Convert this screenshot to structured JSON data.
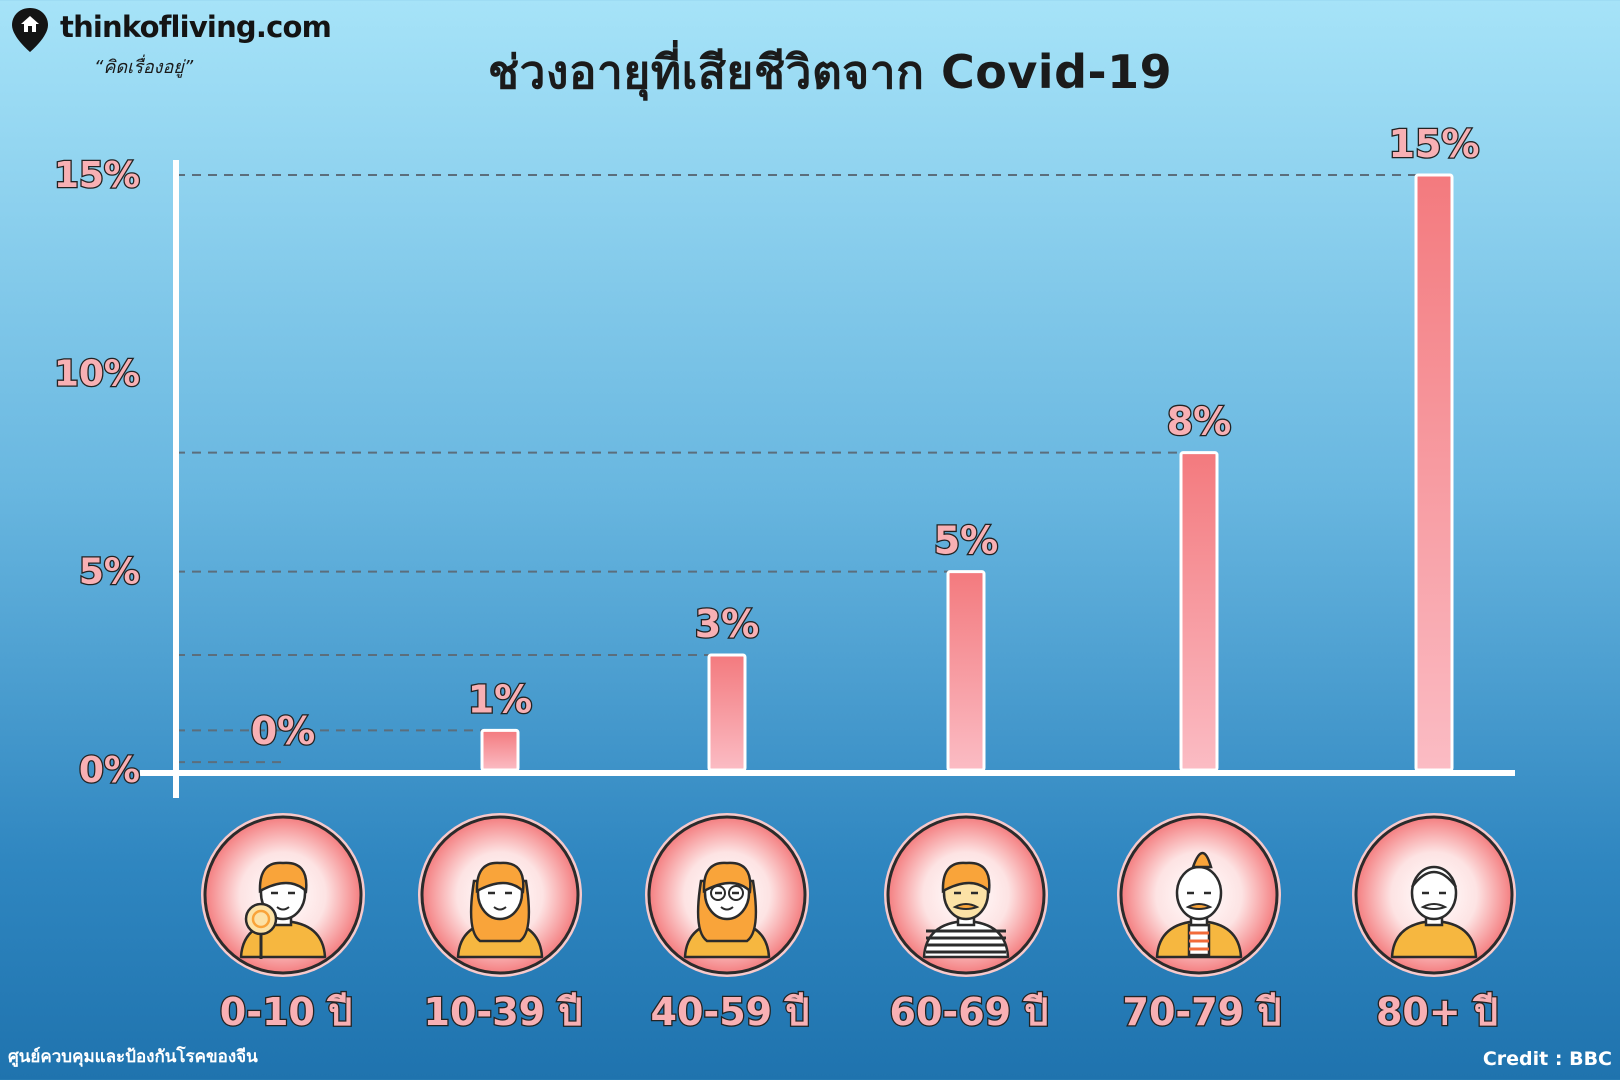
{
  "brand": {
    "logo_text": "thinkofliving.com",
    "tagline": "“คิดเรื่องอยู่”"
  },
  "footer": {
    "source": "ศูนย์ควบคุมและป้องกันโรคของจีน",
    "credit": "Credit : BBC"
  },
  "colors": {
    "bar_top": "#f37a7e",
    "bar_bottom": "#fbbcc4",
    "label_fill": "#f8b0b4",
    "label_stroke": "#232323",
    "axis": "#ffffff",
    "grid": "#5b6e7c",
    "icon_ring": "#f7c9cb",
    "icon_circle": "#f47e80",
    "icon_hair": "#f9a43a",
    "icon_shirt": "#f6b740"
  },
  "chart_data": {
    "type": "bar",
    "title": "ช่วงอายุที่เสียชีวิตจาก Covid-19",
    "categories": [
      "0-10 ปี",
      "10-39 ปี",
      "40-59 ปี",
      "60-69 ปี",
      "70-79 ปี",
      "80+ ปี"
    ],
    "values": [
      0.2,
      1,
      2.9,
      5,
      8,
      15
    ],
    "value_labels": [
      "0%",
      "1%",
      "3%",
      "5%",
      "8%",
      "15%"
    ],
    "yticks": [
      0,
      5,
      10,
      15
    ],
    "ytick_labels": [
      "0%",
      "5%",
      "10%",
      "15%"
    ],
    "ylim": [
      0,
      15
    ],
    "grid": "dashed lines at bar tops",
    "category_icons": [
      "child-with-lollipop-icon",
      "young-woman-icon",
      "woman-with-glasses-icon",
      "bearded-man-icon",
      "old-man-mustache-icon",
      "grandpa-icon"
    ]
  }
}
